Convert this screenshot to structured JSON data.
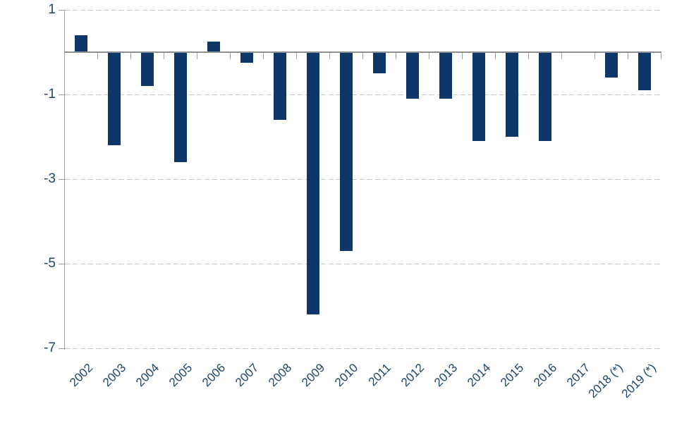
{
  "chart_data": {
    "type": "bar",
    "title": "",
    "xlabel": "",
    "ylabel": "",
    "categories": [
      "2002",
      "2003",
      "2004",
      "2005",
      "2006",
      "2007",
      "2008",
      "2009",
      "2010",
      "2011",
      "2012",
      "2013",
      "2014",
      "2015",
      "2016",
      "2017",
      "2018 (*)",
      "2019 (*)"
    ],
    "values": [
      0.4,
      -2.2,
      -0.8,
      -2.6,
      0.25,
      -0.25,
      -1.6,
      -6.2,
      -4.7,
      -0.5,
      -1.1,
      -1.1,
      -2.1,
      -2.0,
      -2.1,
      0,
      -0.6,
      -0.9
    ],
    "ylim": [
      -7,
      1
    ],
    "yticks": [
      1,
      -1,
      -3,
      -5,
      -7
    ],
    "ytick_labels": [
      "1",
      "-1",
      "-3",
      "-5",
      "-7"
    ],
    "grid": "horizontal-dashed",
    "legend": "none",
    "colors": {
      "bar": "#0e3767",
      "axis_text": "#1d4670",
      "gridline": "#c9c9c9",
      "zero_line": "#8f8f8f",
      "axis_line": "#a3a3a3"
    }
  }
}
